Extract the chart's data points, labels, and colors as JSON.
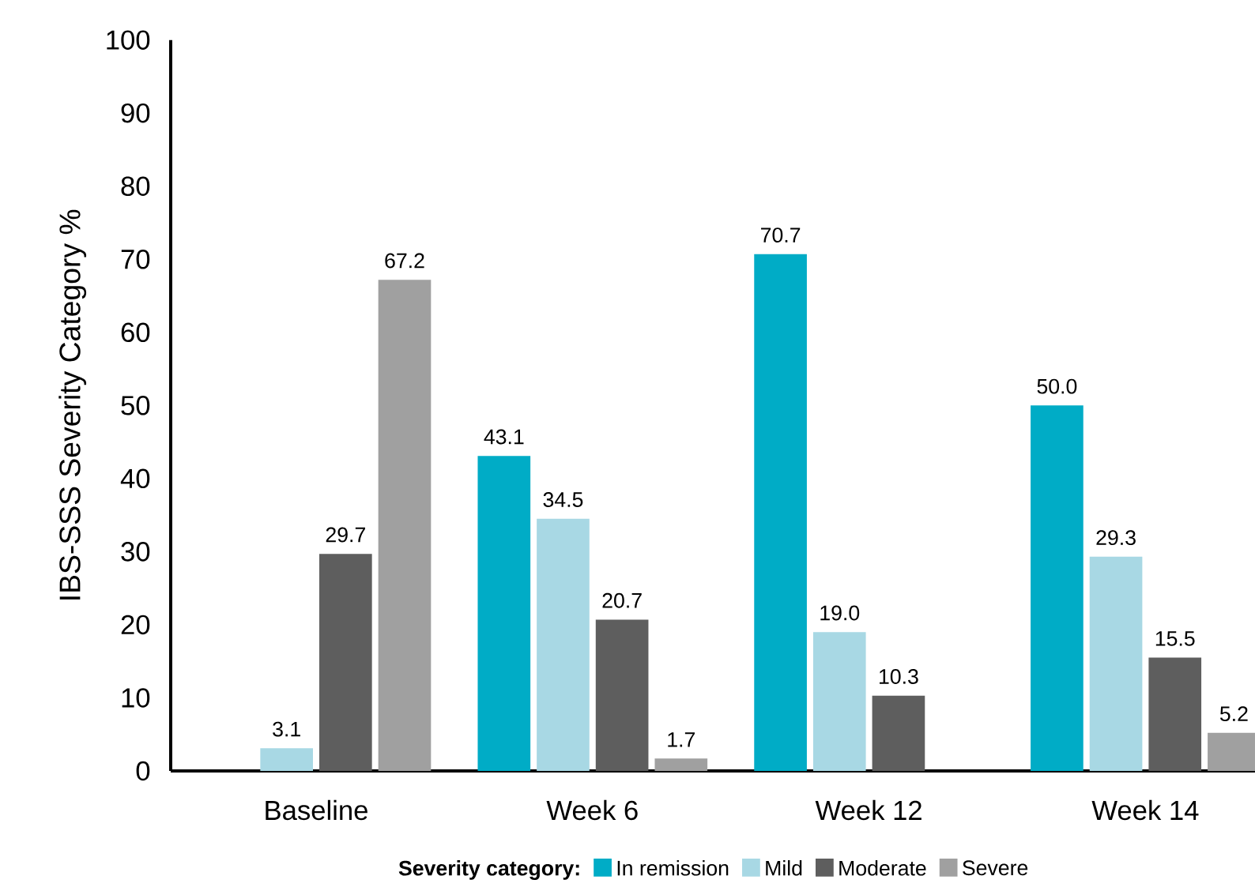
{
  "chart_data": {
    "type": "bar",
    "ylabel": "IBS-SSS Severity Category %",
    "legend_title": "Severity category:",
    "categories": [
      "Baseline",
      "Week 6",
      "Week 12",
      "Week 14"
    ],
    "series": [
      {
        "name": "In remission",
        "color": "#00acc6",
        "values": [
          null,
          43.1,
          70.7,
          50.0
        ],
        "value_labels": [
          null,
          "43.1",
          "70.7",
          "50.0"
        ]
      },
      {
        "name": "Mild",
        "color": "#a8d8e4",
        "values": [
          3.1,
          34.5,
          19.0,
          29.3
        ],
        "value_labels": [
          "3.1",
          "34.5",
          "19.0",
          "29.3"
        ]
      },
      {
        "name": "Moderate",
        "color": "#5e5e5e",
        "values": [
          29.7,
          20.7,
          10.3,
          15.5
        ],
        "value_labels": [
          "29.7",
          "20.7",
          "10.3",
          "15.5"
        ]
      },
      {
        "name": "Severe",
        "color": "#a0a0a0",
        "values": [
          67.2,
          1.7,
          null,
          5.2
        ],
        "value_labels": [
          "67.2",
          "1.7",
          null,
          "5.2"
        ]
      }
    ],
    "ylim": [
      0,
      100
    ],
    "yticks": [
      0,
      10,
      20,
      30,
      40,
      50,
      60,
      70,
      80,
      90,
      100
    ],
    "legend": "bottom"
  }
}
